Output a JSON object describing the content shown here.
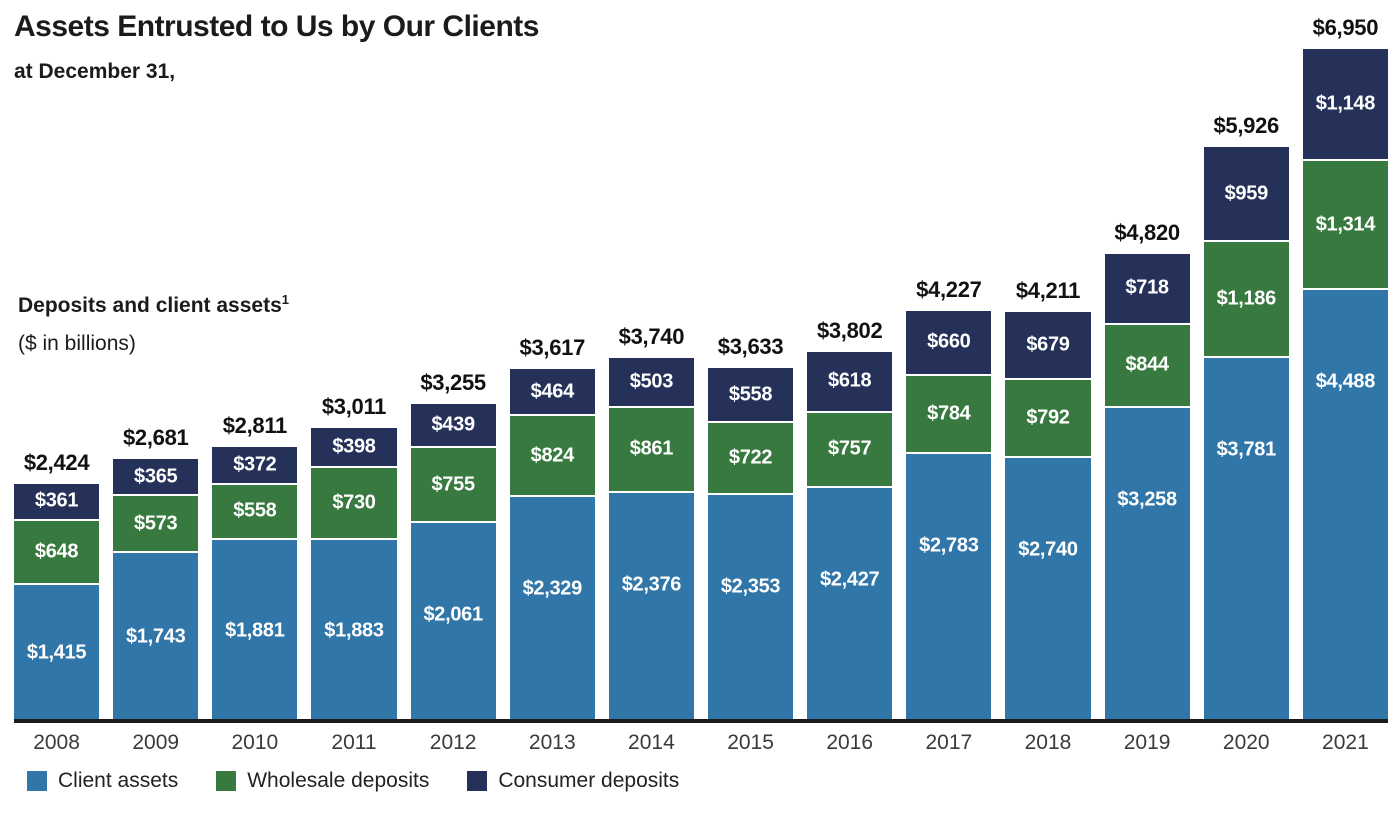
{
  "header": {
    "title": "Assets Entrusted to Us by Our Clients",
    "subtitle": "at December 31,"
  },
  "axis_label": {
    "line1": "Deposits and client assets",
    "superscript": "1",
    "line2": "($ in billions)"
  },
  "colors": {
    "client_assets": "#3076A9",
    "wholesale_deposits": "#38793F",
    "consumer_deposits": "#253159",
    "baseline": "#1a1a1a",
    "total_label": "#111111",
    "segment_label": "#ffffff",
    "year_label": "#3a3a3a"
  },
  "legend": [
    {
      "label": "Client assets",
      "color": "#3076A9"
    },
    {
      "label": "Wholesale deposits",
      "color": "#38793F"
    },
    {
      "label": "Consumer deposits",
      "color": "#253159"
    }
  ],
  "chart_data": {
    "type": "bar",
    "stacked": true,
    "title": "Assets Entrusted to Us by Our Clients",
    "subtitle": "at December 31,",
    "ylabel": "Deposits and client assets ($ in billions)",
    "value_prefix": "$",
    "ylim": [
      0,
      6950
    ],
    "grid": false,
    "legend_position": "bottom",
    "categories": [
      "2008",
      "2009",
      "2010",
      "2011",
      "2012",
      "2013",
      "2014",
      "2015",
      "2016",
      "2017",
      "2018",
      "2019",
      "2020",
      "2021"
    ],
    "series": [
      {
        "name": "Client assets",
        "color": "#3076A9",
        "values": [
          1415,
          1743,
          1881,
          1883,
          2061,
          2329,
          2376,
          2353,
          2427,
          2783,
          2740,
          3258,
          3781,
          4488
        ]
      },
      {
        "name": "Wholesale deposits",
        "color": "#38793F",
        "values": [
          648,
          573,
          558,
          730,
          755,
          824,
          861,
          722,
          757,
          784,
          792,
          844,
          1186,
          1314
        ]
      },
      {
        "name": "Consumer deposits",
        "color": "#253159",
        "values": [
          361,
          365,
          372,
          398,
          439,
          464,
          503,
          558,
          618,
          660,
          679,
          718,
          959,
          1148
        ]
      }
    ],
    "totals": [
      2424,
      2681,
      2811,
      3011,
      3255,
      3617,
      3740,
      3633,
      3802,
      4227,
      4211,
      4820,
      5926,
      6950
    ]
  }
}
